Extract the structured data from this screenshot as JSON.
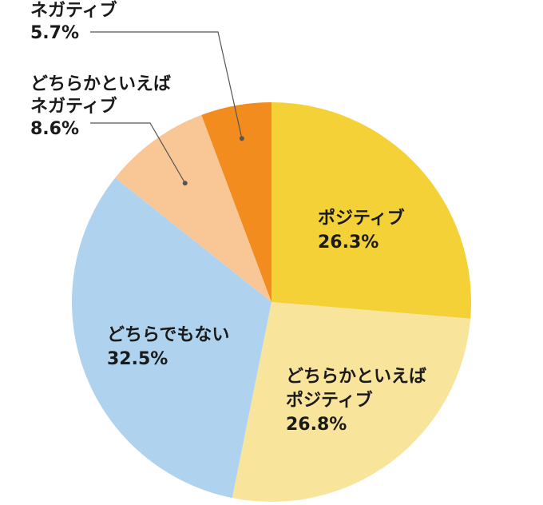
{
  "chart_data": {
    "type": "pie",
    "start_angle_deg": 0,
    "direction": "clockwise",
    "slices": [
      {
        "name_lines": [
          "ポジティブ"
        ],
        "value": 26.3,
        "value_label": "26.3%",
        "color": "#f4d136",
        "label_position": "inside"
      },
      {
        "name_lines": [
          "どちらかといえば",
          "ポジティブ"
        ],
        "value": 26.8,
        "value_label": "26.8%",
        "color": "#f9e49c",
        "label_position": "inside"
      },
      {
        "name_lines": [
          "どちらでもない"
        ],
        "value": 32.5,
        "value_label": "32.5%",
        "color": "#afd3ee",
        "label_position": "inside"
      },
      {
        "name_lines": [
          "どちらかといえば",
          "ネガティブ"
        ],
        "value": 8.6,
        "value_label": "8.6%",
        "color": "#f9c795",
        "label_position": "outside-top-left"
      },
      {
        "name_lines": [
          "ネガティブ"
        ],
        "value": 5.7,
        "value_label": "5.7%",
        "color": "#f28c1e",
        "label_position": "outside-top-left"
      }
    ]
  }
}
